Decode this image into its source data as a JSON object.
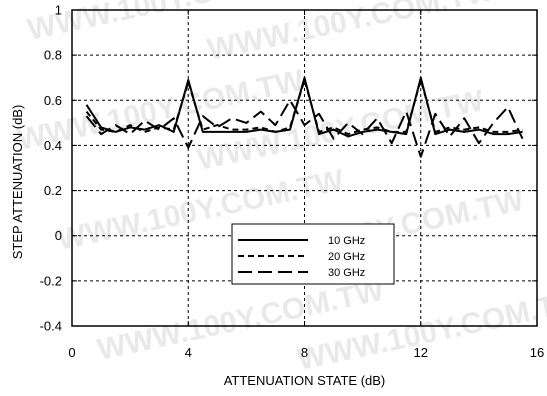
{
  "chart_data": {
    "type": "line",
    "title": "",
    "xlabel": "ATTENUATION STATE (dB)",
    "ylabel": "STEP ATTENUATION (dB)",
    "xlim": [
      0,
      16
    ],
    "ylim": [
      -0.4,
      1
    ],
    "x_ticks": [
      "0",
      "4",
      "8",
      "12",
      "16"
    ],
    "y_ticks": [
      "-0.4",
      "-0.2",
      "0",
      "0.2",
      "0.4",
      "0.6",
      "0.8",
      "1"
    ],
    "x_tick_values": [
      0,
      4,
      8,
      12,
      16
    ],
    "y_tick_values": [
      -0.4,
      -0.2,
      0,
      0.2,
      0.4,
      0.6,
      0.8,
      1
    ],
    "grid": true,
    "legend_position": "lower-center",
    "watermark": "WWW.100Y.COM.TW",
    "series": [
      {
        "name": "10 GHz",
        "style": "solid",
        "color": "#000000",
        "x": [
          0.5,
          1.0,
          1.5,
          2.0,
          2.5,
          3.0,
          3.5,
          4.0,
          4.5,
          5.0,
          5.5,
          6.0,
          6.5,
          7.0,
          7.5,
          8.0,
          8.5,
          9.0,
          9.5,
          10.0,
          10.5,
          11.0,
          11.5,
          12.0,
          12.5,
          13.0,
          13.5,
          14.0,
          14.5,
          15.0,
          15.5
        ],
        "y": [
          0.58,
          0.48,
          0.46,
          0.48,
          0.47,
          0.49,
          0.46,
          0.69,
          0.46,
          0.46,
          0.46,
          0.46,
          0.47,
          0.46,
          0.47,
          0.7,
          0.45,
          0.47,
          0.44,
          0.46,
          0.47,
          0.46,
          0.45,
          0.7,
          0.45,
          0.47,
          0.46,
          0.47,
          0.45,
          0.45,
          0.46
        ]
      },
      {
        "name": "20 GHz",
        "style": "dashed",
        "color": "#000000",
        "x": [
          0.5,
          1.0,
          1.5,
          2.0,
          2.5,
          3.0,
          3.5,
          4.0,
          4.5,
          5.0,
          5.5,
          6.0,
          6.5,
          7.0,
          7.5,
          8.0,
          8.5,
          9.0,
          9.5,
          10.0,
          10.5,
          11.0,
          11.5,
          12.0,
          12.5,
          13.0,
          13.5,
          14.0,
          14.5,
          15.0,
          15.5
        ],
        "y": [
          0.55,
          0.47,
          0.46,
          0.49,
          0.46,
          0.48,
          0.47,
          0.68,
          0.47,
          0.49,
          0.47,
          0.47,
          0.48,
          0.46,
          0.48,
          0.69,
          0.46,
          0.48,
          0.45,
          0.47,
          0.48,
          0.46,
          0.46,
          0.69,
          0.46,
          0.48,
          0.47,
          0.48,
          0.46,
          0.46,
          0.47
        ]
      },
      {
        "name": "30 GHz",
        "style": "long-dash",
        "color": "#000000",
        "x": [
          0.5,
          1.0,
          1.5,
          2.0,
          2.5,
          3.0,
          3.5,
          4.0,
          4.5,
          5.0,
          5.5,
          6.0,
          6.5,
          7.0,
          7.5,
          8.0,
          8.5,
          9.0,
          9.5,
          10.0,
          10.5,
          11.0,
          11.5,
          12.0,
          12.5,
          13.0,
          13.5,
          14.0,
          14.5,
          15.0,
          15.5
        ],
        "y": [
          0.53,
          0.45,
          0.49,
          0.45,
          0.51,
          0.47,
          0.52,
          0.39,
          0.53,
          0.48,
          0.52,
          0.5,
          0.55,
          0.49,
          0.6,
          0.49,
          0.54,
          0.43,
          0.5,
          0.45,
          0.52,
          0.41,
          0.55,
          0.35,
          0.54,
          0.44,
          0.52,
          0.41,
          0.5,
          0.57,
          0.43
        ]
      }
    ]
  }
}
